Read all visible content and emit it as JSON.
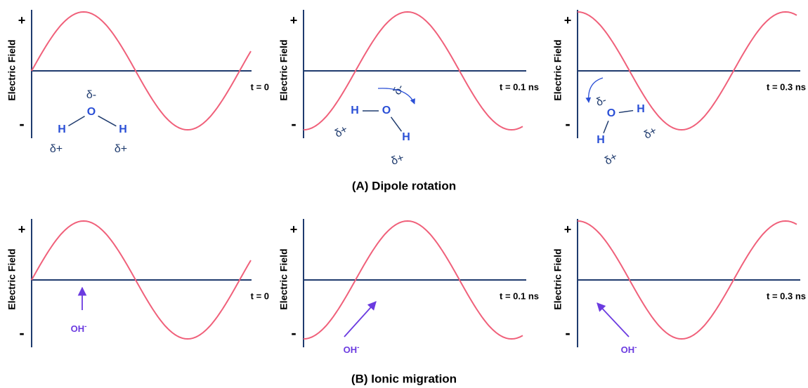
{
  "rows": [
    {
      "caption": "(A) Dipole rotation",
      "panels": [
        {
          "y_label": "Electric Field",
          "plus": "+",
          "minus": "-",
          "time": "t = 0",
          "atoms": [
            "O",
            "H",
            "H"
          ],
          "charges": [
            "δ-",
            "δ+",
            "δ+"
          ]
        },
        {
          "y_label": "Electric Field",
          "plus": "+",
          "minus": "-",
          "time": "t = 0.1 ns",
          "atoms": [
            "O",
            "H",
            "H"
          ],
          "charges": [
            "δ-",
            "δ+",
            "δ+"
          ]
        },
        {
          "y_label": "Electric Field",
          "plus": "+",
          "minus": "-",
          "time": "t = 0.3 ns",
          "atoms": [
            "O",
            "H",
            "H"
          ],
          "charges": [
            "δ-",
            "δ+",
            "δ+"
          ]
        }
      ]
    },
    {
      "caption": "(B) Ionic migration",
      "panels": [
        {
          "y_label": "Electric Field",
          "plus": "+",
          "minus": "-",
          "time": "t = 0",
          "ion": "OH",
          "ion_charge": "-"
        },
        {
          "y_label": "Electric Field",
          "plus": "+",
          "minus": "-",
          "time": "t = 0.1 ns",
          "ion": "OH",
          "ion_charge": "-"
        },
        {
          "y_label": "Electric Field",
          "plus": "+",
          "minus": "-",
          "time": "t = 0.3 ns",
          "ion": "OH",
          "ion_charge": "-"
        }
      ]
    }
  ]
}
